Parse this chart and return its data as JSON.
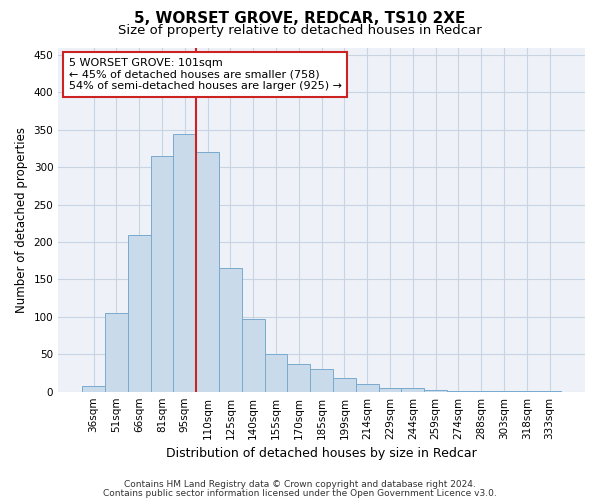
{
  "title": "5, WORSET GROVE, REDCAR, TS10 2XE",
  "subtitle": "Size of property relative to detached houses in Redcar",
  "xlabel": "Distribution of detached houses by size in Redcar",
  "ylabel": "Number of detached properties",
  "categories": [
    "36sqm",
    "51sqm",
    "66sqm",
    "81sqm",
    "95sqm",
    "110sqm",
    "125sqm",
    "140sqm",
    "155sqm",
    "170sqm",
    "185sqm",
    "199sqm",
    "214sqm",
    "229sqm",
    "244sqm",
    "259sqm",
    "274sqm",
    "288sqm",
    "303sqm",
    "318sqm",
    "333sqm"
  ],
  "values": [
    7,
    105,
    210,
    315,
    345,
    320,
    165,
    97,
    50,
    37,
    30,
    18,
    10,
    5,
    5,
    2,
    1,
    1,
    1,
    1,
    1
  ],
  "bar_color": "#c9daea",
  "bar_edgecolor": "#7aaad0",
  "redline_x": 4.5,
  "annotation_line1": "5 WORSET GROVE: 101sqm",
  "annotation_line2": "← 45% of detached houses are smaller (758)",
  "annotation_line3": "54% of semi-detached houses are larger (925) →",
  "annotation_box_edgecolor": "#cc2222",
  "redline_color": "#cc2222",
  "ylim": [
    0,
    460
  ],
  "yticks": [
    0,
    50,
    100,
    150,
    200,
    250,
    300,
    350,
    400,
    450
  ],
  "grid_color": "#c8d4e4",
  "bg_color": "#eef2f8",
  "footer1": "Contains HM Land Registry data © Crown copyright and database right 2024.",
  "footer2": "Contains public sector information licensed under the Open Government Licence v3.0.",
  "title_fontsize": 11,
  "subtitle_fontsize": 9.5,
  "xlabel_fontsize": 9,
  "ylabel_fontsize": 8.5,
  "tick_fontsize": 7.5,
  "annotation_fontsize": 8,
  "footer_fontsize": 6.5
}
